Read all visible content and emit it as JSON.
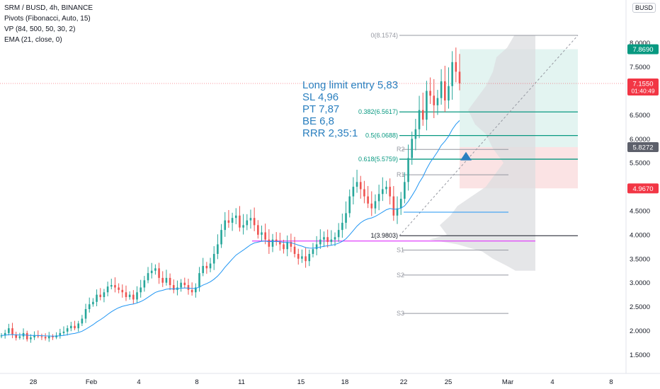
{
  "header": {
    "symbol_line": "SRM / BUSD, 4h, BINANCE",
    "indicators": [
      "Pivots (Fibonacci, Auto, 15)",
      "VP (84, 500, 50, 30, 2)",
      "EMA (21, close, 0)"
    ],
    "currency": "BUSD"
  },
  "annotation": {
    "lines": [
      "Long limit entry 5,83",
      "SL 4,96",
      "PT 7,87",
      "BE 6,8",
      "RRR 2,35:1"
    ]
  },
  "price_axis": {
    "ticks": [
      "8.0000",
      "7.5000",
      "7.0000",
      "6.5000",
      "6.0000",
      "5.5000",
      "5.0000",
      "4.5000",
      "4.0000",
      "3.5000",
      "3.0000",
      "2.5000",
      "2.0000",
      "1.5000"
    ],
    "tick_values": [
      8.0,
      7.5,
      7.0,
      6.5,
      6.0,
      5.5,
      5.0,
      4.5,
      4.0,
      3.5,
      3.0,
      2.5,
      2.0,
      1.5
    ]
  },
  "price_labels": [
    {
      "text": "7.8690",
      "value": 7.869,
      "color": "#089981"
    },
    {
      "text": "7.1550",
      "value": 7.155,
      "color": "#f23645",
      "countdown": "01:40:49"
    },
    {
      "text": "5.8272",
      "value": 5.8272,
      "color": "#5d606b"
    },
    {
      "text": "4.9670",
      "value": 4.967,
      "color": "#f23645"
    }
  ],
  "time_axis": {
    "labels": [
      "28",
      "Feb",
      "4",
      "8",
      "11",
      "15",
      "18",
      "22",
      "25",
      "Mar",
      "4",
      "8"
    ]
  },
  "fib_levels": [
    {
      "label": "0(8.1574)",
      "value": 8.1574,
      "color": "#9598a1"
    },
    {
      "label": "0.382(6.5617)",
      "value": 6.5617,
      "color": "#089981"
    },
    {
      "label": "0.5(6.0688)",
      "value": 6.0688,
      "color": "#089981"
    },
    {
      "label": "0.618(5.5759)",
      "value": 5.5759,
      "color": "#089981"
    },
    {
      "label": "1(3.9803)",
      "value": 3.9803,
      "color": "#131722"
    }
  ],
  "pivots": [
    {
      "label": "R2",
      "value": 5.78
    },
    {
      "label": "R1",
      "value": 5.25
    },
    {
      "label": "S1",
      "value": 3.68
    },
    {
      "label": "S2",
      "value": 3.16
    },
    {
      "label": "S3",
      "value": 2.36
    }
  ],
  "position": {
    "entry": 5.8272,
    "target": 7.869,
    "stop": 4.967
  },
  "colors": {
    "up": "#26a69a",
    "down": "#ef5350",
    "ema": "#2196f3",
    "profit_zone": "#e3f4f1",
    "loss_zone": "#fbe3e4",
    "vp": "#dcdde0",
    "poc": "#e040fb"
  },
  "chart_data": {
    "type": "candlestick",
    "symbol": "SRM / BUSD",
    "interval": "4h",
    "ylim": [
      1.3,
      8.5
    ],
    "ema_period": 21,
    "close": [
      1.9,
      1.95,
      2.05,
      1.92,
      1.85,
      1.88,
      1.95,
      1.82,
      1.86,
      1.9,
      1.88,
      1.87,
      1.84,
      1.88,
      1.86,
      1.9,
      1.95,
      1.98,
      2.05,
      2.1,
      2.05,
      2.15,
      2.25,
      2.45,
      2.55,
      2.6,
      2.75,
      2.7,
      2.8,
      2.92,
      2.95,
      2.9,
      2.85,
      2.8,
      2.7,
      2.75,
      2.65,
      2.8,
      2.9,
      3.05,
      3.2,
      3.25,
      3.3,
      3.1,
      3.0,
      3.1,
      2.95,
      2.85,
      2.9,
      3.0,
      2.95,
      2.85,
      2.8,
      2.9,
      3.2,
      3.35,
      3.3,
      3.4,
      3.6,
      3.8,
      4.1,
      4.3,
      4.25,
      4.35,
      4.4,
      4.15,
      4.2,
      4.3,
      4.35,
      4.2,
      4.0,
      4.05,
      3.9,
      3.75,
      3.9,
      3.85,
      3.8,
      3.7,
      3.85,
      3.75,
      3.6,
      3.5,
      3.55,
      3.45,
      3.6,
      3.7,
      3.8,
      3.9,
      3.95,
      3.85,
      3.9,
      3.95,
      4.1,
      4.25,
      4.45,
      4.8,
      5.0,
      5.1,
      4.95,
      4.8,
      4.65,
      4.55,
      4.7,
      4.85,
      4.95,
      5.0,
      4.8,
      4.4,
      4.55,
      4.75,
      5.1,
      5.6,
      6.0,
      6.2,
      6.6,
      6.4,
      7.0,
      6.9,
      6.7,
      6.85,
      7.2,
      6.8,
      7.1,
      7.6,
      7.4,
      7.155
    ],
    "ema_label": "EMA (21, close, 0)"
  }
}
